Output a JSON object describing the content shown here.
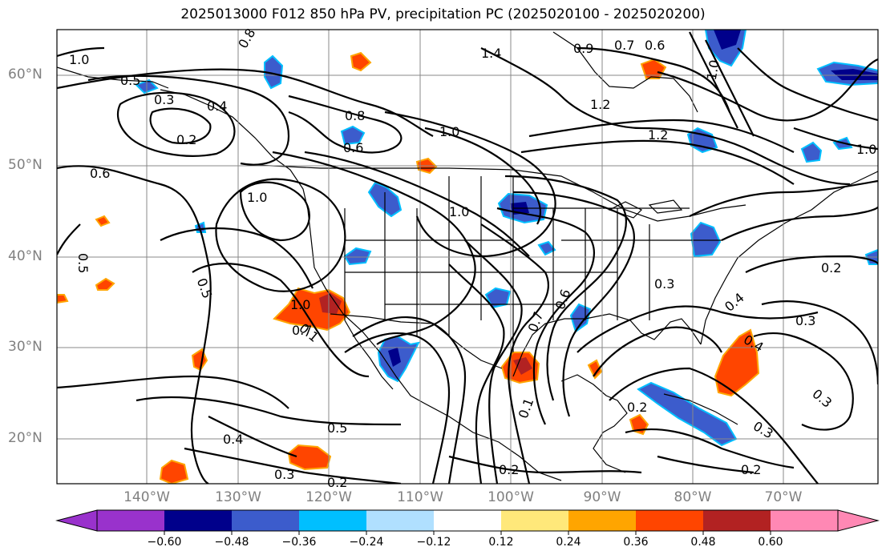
{
  "title": "2025013000 F012 850 hPa PV, precipitation PC (2025020100 - 2025020200)",
  "lat_labels": [
    "60°N",
    "50°N",
    "40°N",
    "30°N",
    "20°N"
  ],
  "lon_labels": [
    "140°W",
    "130°W",
    "120°W",
    "110°W",
    "100°W",
    "90°W",
    "80°W",
    "70°W"
  ],
  "colorbar": {
    "colors": [
      "#9932cc",
      "#00008b",
      "#3c5ccc",
      "#00bfff",
      "#b0e0ff",
      "#ffffff",
      "#ffe87a",
      "#ffa500",
      "#ff4500",
      "#b22222",
      "#ff88b4"
    ],
    "ticks": [
      "−0.60",
      "−0.48",
      "−0.36",
      "−0.24",
      "−0.12",
      "0.12",
      "0.24",
      "0.36",
      "0.48",
      "0.60"
    ]
  },
  "contour_labels": [
    "1.0",
    "0.8",
    "0.5",
    "0.3",
    "0.2",
    "0.4",
    "0.6",
    "0.8",
    "1.0",
    "0.6",
    "1.4",
    "1.2",
    "0.9",
    "0.7",
    "0.6",
    "1.0",
    "1.2",
    "1.0",
    "0.5",
    "1.0",
    "0.7",
    "0.5",
    "0.6",
    "0.7",
    "0.3",
    "0.2",
    "0.5",
    "0.4",
    "0.3",
    "0.2",
    "0.3",
    "0.4",
    "0.4",
    "0.3",
    "0.2",
    "0.3",
    "0.2",
    "0.1",
    "1.0",
    "1.0",
    "0.1",
    "0.2"
  ]
}
